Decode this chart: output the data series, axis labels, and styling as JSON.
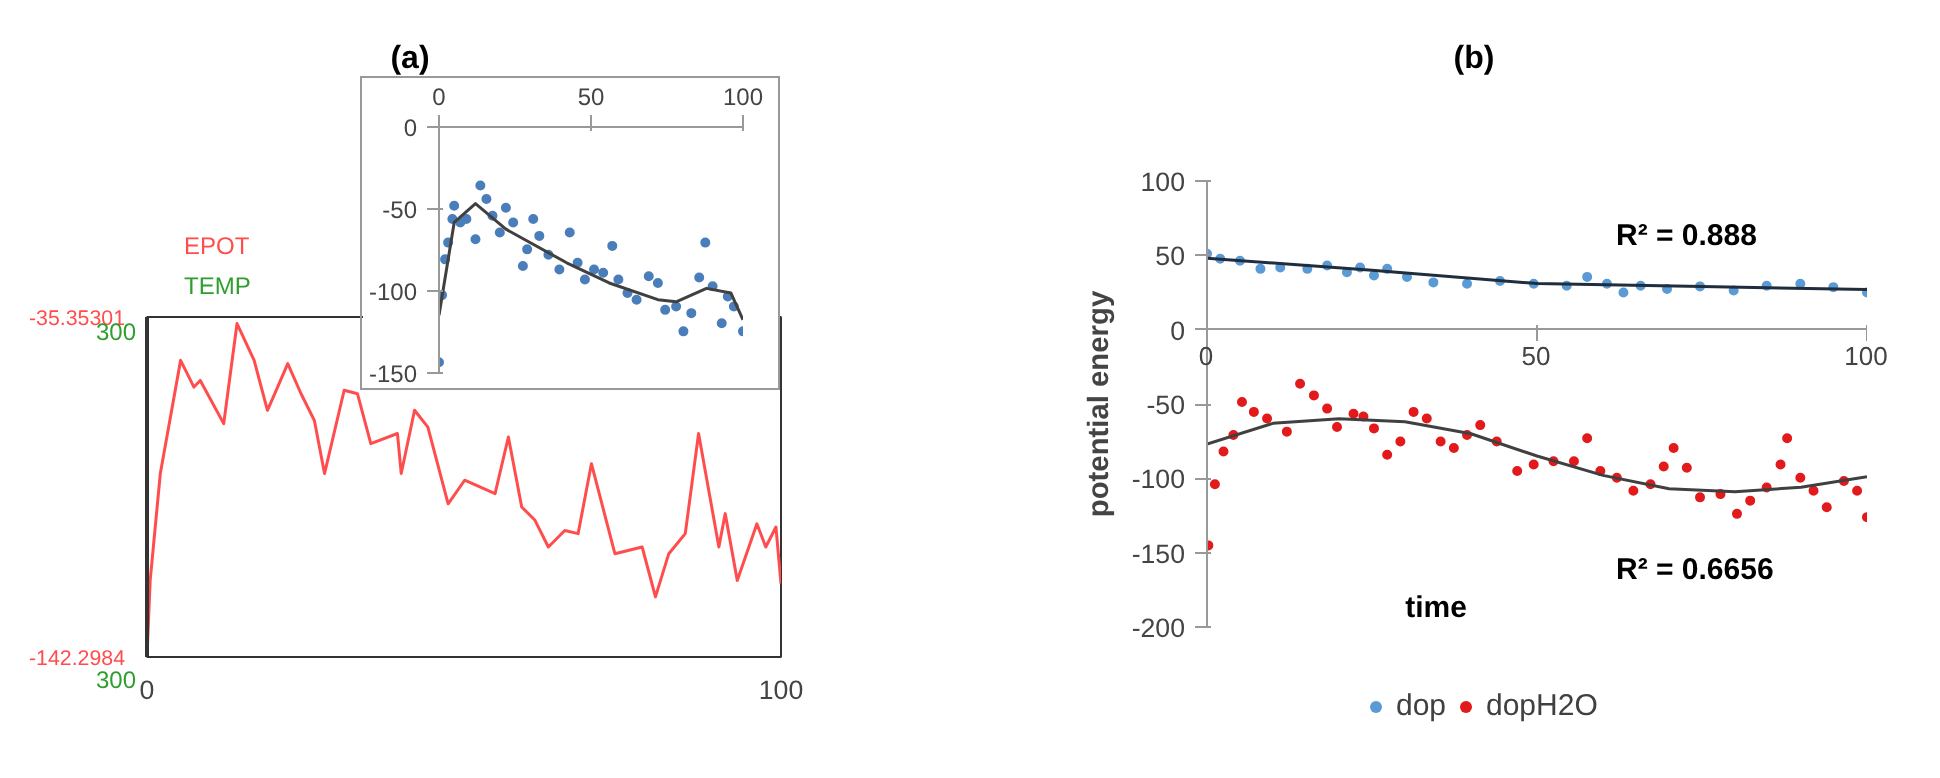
{
  "chart_data": [
    {
      "type": "line",
      "title": "(a)",
      "xlim": [
        0,
        100
      ],
      "xticks": [
        0,
        100
      ],
      "ylim": [
        -142.2984,
        -35.35301
      ],
      "yticks": [
        -142.2984,
        -35.35301
      ],
      "grid": false,
      "marker": "none",
      "line_style": "solid",
      "annotations": [
        "TEMP",
        "300",
        "300"
      ],
      "series": [
        {
          "name": "EPOT",
          "color": "#ff4d4d",
          "x": [
            0,
            0.5,
            2.1,
            5.3,
            7.4,
            8.4,
            12.1,
            14.2,
            16.9,
            19.0,
            20.6,
            22.2,
            24.3,
            26.4,
            28.0,
            31.1,
            33.2,
            35.3,
            39.5,
            40.1,
            42.2,
            44.3,
            47.5,
            50.1,
            54.9,
            57.0,
            59.1,
            61.2,
            63.3,
            65.9,
            68.0,
            70.1,
            73.8,
            78.1,
            80.2,
            82.3,
            84.9,
            87.0,
            90.2,
            91.2,
            93.1,
            96.2,
            97.6,
            99.2,
            100
          ],
          "values": [
            -142.2,
            -118.2,
            -84.6,
            -49.0,
            -57.4,
            -55.3,
            -68.9,
            -37.4,
            -49.0,
            -64.7,
            -57.4,
            -50.0,
            -59.5,
            -67.9,
            -84.6,
            -58.4,
            -59.5,
            -75.2,
            -72.0,
            -84.6,
            -64.7,
            -70.0,
            -94.1,
            -86.7,
            -90.9,
            -73.1,
            -95.1,
            -99.3,
            -107.7,
            -102.5,
            -103.5,
            -81.5,
            -109.8,
            -107.7,
            -123.4,
            -109.8,
            -103.5,
            -72.0,
            -107.7,
            -97.2,
            -118.2,
            -100.4,
            -107.7,
            -101.4,
            -119.2
          ]
        }
      ]
    },
    {
      "type": "scatter",
      "xlim": [
        0,
        100
      ],
      "xticks": [
        0,
        50,
        100
      ],
      "ylim": [
        -150,
        0
      ],
      "yticks": [
        -150,
        -100,
        -50,
        0
      ],
      "grid": false,
      "legend": false,
      "marker": "circle",
      "series": [
        {
          "color": "#4a7ebb",
          "x": [
            0,
            1,
            2,
            3,
            4.4,
            5,
            7,
            9,
            12,
            13.6,
            15.6,
            17.6,
            20,
            22,
            24.4,
            27.6,
            29,
            31,
            33,
            36,
            39.6,
            43,
            45.6,
            48,
            51,
            54,
            57,
            59,
            62,
            65,
            69,
            72,
            74.4,
            78,
            80.4,
            83,
            85.6,
            87.6,
            90,
            93,
            95,
            97,
            100
          ],
          "values": [
            -143.4,
            -102.5,
            -80.7,
            -70.5,
            -56.1,
            -48,
            -58.2,
            -56.1,
            -68.4,
            -35.7,
            -43.9,
            -54.1,
            -64.3,
            -49.2,
            -58.2,
            -84.8,
            -74.6,
            -56.1,
            -66.4,
            -77.9,
            -86.9,
            -64.3,
            -82.8,
            -93,
            -86.9,
            -88.9,
            -72.5,
            -93,
            -101.2,
            -105.3,
            -91,
            -95.1,
            -111.5,
            -109.4,
            -124.6,
            -113.5,
            -91.8,
            -70.5,
            -97.1,
            -119.7,
            -103.3,
            -109.4,
            -124.6
          ]
        },
        {
          "type": "line",
          "marker": "none",
          "color": "#404040",
          "x": [
            0,
            5,
            12,
            22,
            42,
            56,
            72,
            78,
            88,
            96,
            100
          ],
          "values": [
            -114.8,
            -58.2,
            -46.7,
            -62.3,
            -82.8,
            -95.1,
            -105.3,
            -106.6,
            -98.4,
            -101.2,
            -117.6
          ]
        }
      ]
    },
    {
      "type": "scatter",
      "title": "(b)",
      "xlabel": "time",
      "ylabel": "potential energy",
      "xlim": [
        0,
        100
      ],
      "xticks": [
        0,
        50,
        100
      ],
      "ylim": [
        -200,
        100
      ],
      "yticks": [
        -200,
        -150,
        -100,
        -50,
        0,
        50,
        100
      ],
      "grid": false,
      "legend": "bottom",
      "marker": "circle",
      "annotations": [
        "R² = 0.888",
        "R² = 0.6656"
      ],
      "series": [
        {
          "name": "dop",
          "color": "#5b9bd5",
          "x": [
            0,
            2,
            5,
            8.1,
            11.1,
            15.2,
            18.2,
            21.2,
            23.2,
            25.3,
            27.3,
            30.3,
            34.3,
            39.4,
            44.4,
            49.5,
            54.5,
            57.6,
            60.6,
            63.1,
            65.7,
            69.7,
            74.7,
            79.8,
            84.8,
            89.9,
            94.9,
            100
          ],
          "values": [
            51,
            47.7,
            46.4,
            40.9,
            41.8,
            40.9,
            43.2,
            38.6,
            41.8,
            36.4,
            40.9,
            35.5,
            31.8,
            30.9,
            32.7,
            30.9,
            29.5,
            35.5,
            30.9,
            25,
            29.5,
            27.3,
            29.1,
            26.4,
            29.5,
            30.9,
            28.6,
            25
          ]
        },
        {
          "name": "dopH2O",
          "color": "#e31a1c",
          "x": [
            0.2,
            1.2,
            2.5,
            4,
            5.3,
            7.1,
            9.1,
            12.1,
            14.1,
            16.2,
            18.2,
            19.7,
            22.2,
            23.7,
            25.3,
            27.3,
            29.3,
            31.3,
            33.3,
            35.4,
            37.4,
            39.4,
            41.4,
            43.9,
            47,
            49.5,
            52.5,
            55.6,
            57.6,
            59.6,
            62.1,
            64.6,
            67.2,
            69.2,
            70.7,
            72.7,
            74.7,
            77.8,
            80.3,
            82.3,
            84.8,
            86.9,
            87.9,
            89.9,
            91.9,
            93.9,
            96.5,
            98.5,
            100
          ],
          "values": [
            -145.1,
            -104,
            -81.9,
            -70.8,
            -48.7,
            -55.3,
            -59.7,
            -68.6,
            -36.4,
            -44.2,
            -53.1,
            -65.5,
            -56.6,
            -58.4,
            -66.4,
            -84.1,
            -75.2,
            -55.3,
            -59.7,
            -75.2,
            -79.6,
            -70.8,
            -64.2,
            -75.2,
            -95.1,
            -90.7,
            -88.5,
            -88.5,
            -73,
            -95.1,
            -99.6,
            -108.4,
            -104,
            -92,
            -79.6,
            -92.9,
            -112.8,
            -110.6,
            -123.9,
            -115,
            -106.2,
            -90.7,
            -73,
            -99.6,
            -108.4,
            -119.5,
            -101.8,
            -108.4,
            -126.1
          ]
        },
        {
          "type": "line",
          "marker": "none",
          "color": "#1f2d3d",
          "x": [
            0,
            25,
            50,
            75,
            100
          ],
          "values": [
            48,
            40,
            31,
            29,
            27
          ]
        },
        {
          "type": "line",
          "marker": "none",
          "color": "#404040",
          "x": [
            0,
            10,
            20,
            30,
            40,
            50,
            60,
            70,
            80,
            90,
            100
          ],
          "values": [
            -77,
            -63,
            -60,
            -62,
            -70,
            -85,
            -98,
            -107,
            -109,
            -106,
            -99
          ]
        }
      ]
    }
  ]
}
